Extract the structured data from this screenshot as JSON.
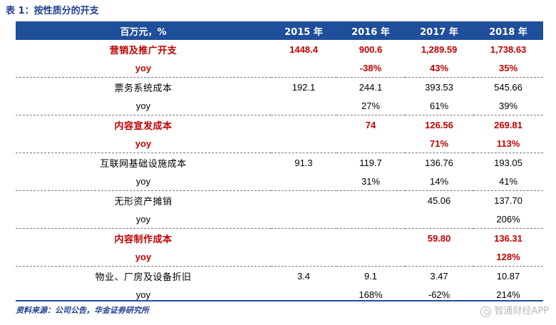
{
  "caption": "表 1：按性质分的开支",
  "table": {
    "headers": [
      "百万元，%",
      "2015 年",
      "2016 年",
      "2017 年",
      "2018 年"
    ],
    "rows": [
      {
        "cells": [
          "营销及推广开支",
          "1448.4",
          "900.6",
          "1,289.59",
          "1,738.63"
        ]
      },
      {
        "cells": [
          "yoy",
          "",
          "-38%",
          "43%",
          "35%"
        ]
      },
      {
        "cells": [
          "票务系统成本",
          "192.1",
          "244.1",
          "393.53",
          "545.66"
        ]
      },
      {
        "cells": [
          "yoy",
          "",
          "27%",
          "61%",
          "39%"
        ]
      },
      {
        "cells": [
          "内容宣发成本",
          "",
          "74",
          "126.56",
          "269.81"
        ]
      },
      {
        "cells": [
          "yoy",
          "",
          "",
          "71%",
          "113%"
        ]
      },
      {
        "cells": [
          "互联网基础设施成本",
          "91.3",
          "119.7",
          "136.76",
          "193.05"
        ]
      },
      {
        "cells": [
          "yoy",
          "",
          "31%",
          "14%",
          "41%"
        ]
      },
      {
        "cells": [
          "无形资产摊销",
          "",
          "",
          "45.06",
          "137.70"
        ]
      },
      {
        "cells": [
          "yoy",
          "",
          "",
          "",
          "206%"
        ]
      },
      {
        "cells": [
          "内容制作成本",
          "",
          "",
          "59.80",
          "136.31"
        ]
      },
      {
        "cells": [
          "yoy",
          "",
          "",
          "",
          "128%"
        ]
      },
      {
        "cells": [
          "物业、厂房及设备折旧",
          "3.4",
          "9.1",
          "3.47",
          "10.87"
        ]
      },
      {
        "cells": [
          "yoy",
          "",
          "168%",
          "-62%",
          "214%"
        ]
      }
    ]
  },
  "source": "资料来源：公司公告，华金证券研究所",
  "watermark": "智通财经APP",
  "colors": {
    "header_bg": "#1f4e9a",
    "highlight_text": "#c00000",
    "caption_text": "#1f3f8f"
  }
}
